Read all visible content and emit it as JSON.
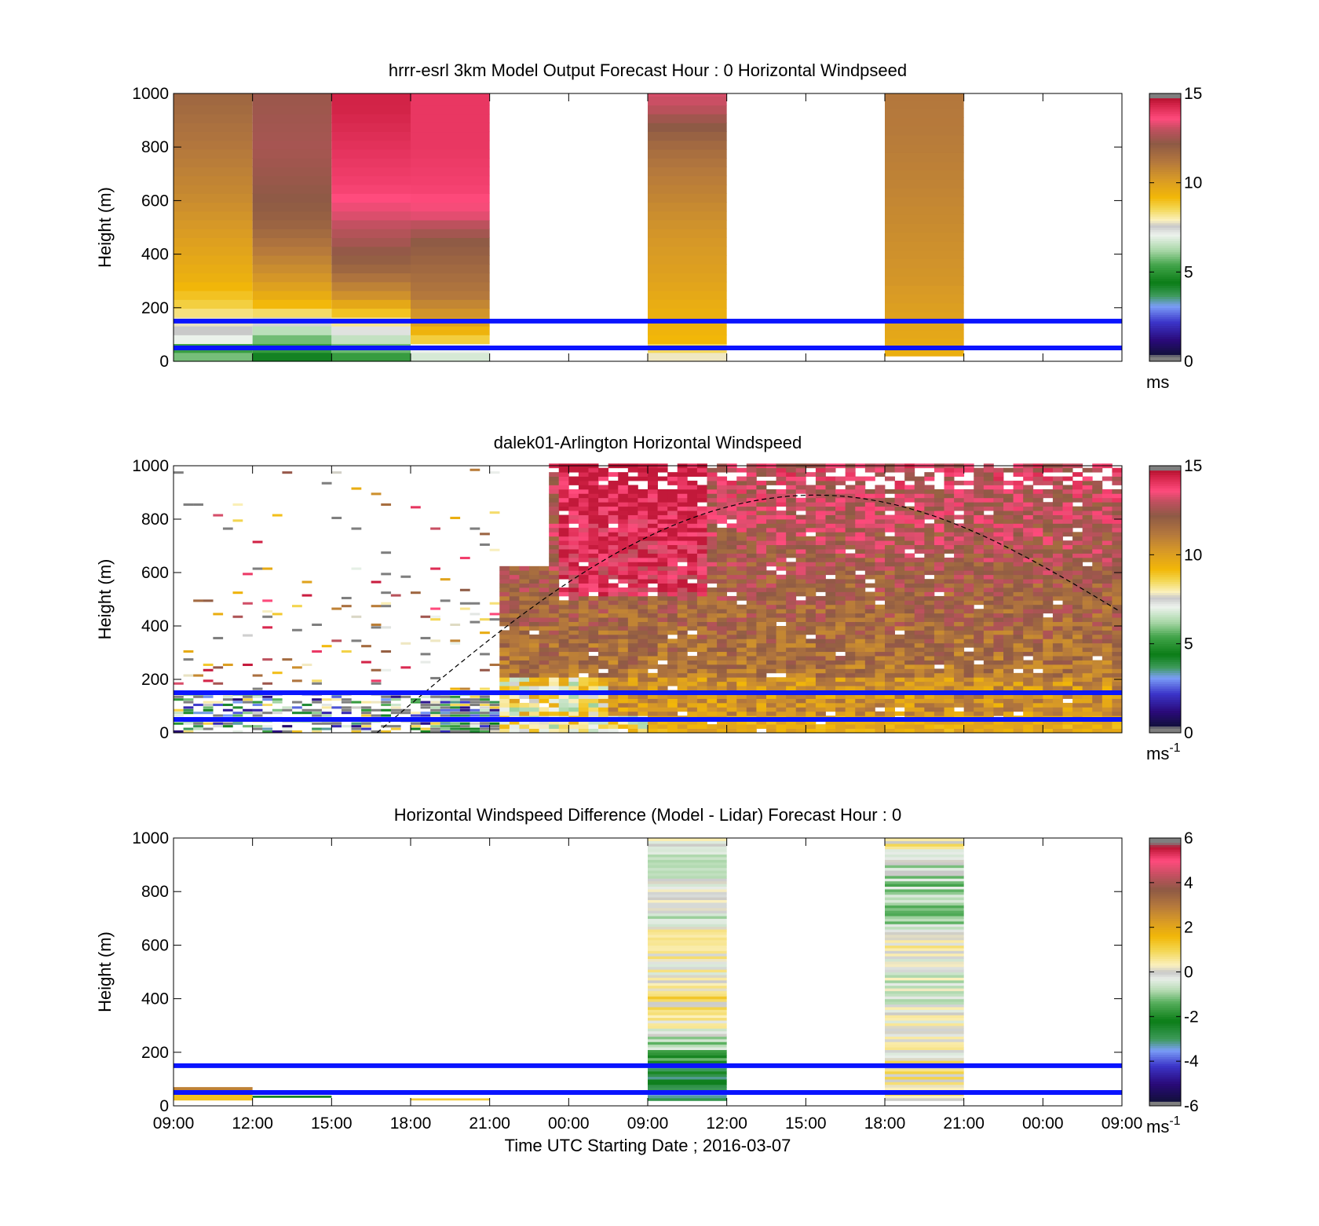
{
  "chart_data": [
    {
      "type": "heatmap",
      "title": "hrrr-esrl 3km Model Output   Forecast Hour : 0 Horizontal Windpseed",
      "ylabel": "Height (m)",
      "xlabel": "",
      "ylim": [
        0,
        1000
      ],
      "yticks": [
        "0",
        "200",
        "400",
        "600",
        "800",
        "1000"
      ],
      "xlim_hours": [
        0,
        48
      ],
      "xticks": [
        "09:00",
        "12:00",
        "15:00",
        "18:00",
        "21:00",
        "00:00",
        "09:00",
        "12:00",
        "15:00",
        "18:00",
        "21:00",
        "00:00",
        "09:00"
      ],
      "show_xtick_labels": false,
      "colorbar": {
        "min": 0,
        "max": 15,
        "ticks": [
          "0",
          "5",
          "10",
          "15"
        ],
        "unit": "ms",
        "unit_sup": "",
        "scheme": "wind"
      },
      "reference_lines_m": [
        50,
        150
      ],
      "reference_line_color": "#0a14ff",
      "columns": [
        {
          "start_hour": 0,
          "end_hour": 4,
          "profile": [
            [
              0,
              2
            ],
            [
              15,
              6
            ],
            [
              35,
              3.5
            ],
            [
              60,
              6.5
            ],
            [
              100,
              7.5
            ],
            [
              150,
              7.8
            ],
            [
              200,
              8.6
            ],
            [
              300,
              9.4
            ],
            [
              400,
              9.8
            ],
            [
              500,
              10.2
            ],
            [
              600,
              10.6
            ],
            [
              700,
              10.9
            ],
            [
              800,
              11.2
            ],
            [
              900,
              11.5
            ],
            [
              1000,
              11.8
            ]
          ]
        },
        {
          "start_hour": 4,
          "end_hour": 8,
          "profile": [
            [
              0,
              4
            ],
            [
              30,
              4.5
            ],
            [
              60,
              5.5
            ],
            [
              100,
              6
            ],
            [
              150,
              7.5
            ],
            [
              200,
              9
            ],
            [
              300,
              10.2
            ],
            [
              400,
              11
            ],
            [
              500,
              11.8
            ],
            [
              600,
              12.2
            ],
            [
              700,
              12.4
            ],
            [
              800,
              12.6
            ],
            [
              900,
              12.5
            ],
            [
              1000,
              12.4
            ]
          ]
        },
        {
          "start_hour": 8,
          "end_hour": 12,
          "profile": [
            [
              0,
              5
            ],
            [
              40,
              5.5
            ],
            [
              80,
              6.5
            ],
            [
              120,
              7.4
            ],
            [
              160,
              8.5
            ],
            [
              250,
              10.5
            ],
            [
              350,
              11.8
            ],
            [
              450,
              12.6
            ],
            [
              550,
              13.3
            ],
            [
              650,
              13.8
            ],
            [
              750,
              14
            ],
            [
              850,
              14.2
            ],
            [
              950,
              14.4
            ],
            [
              1000,
              14.4
            ]
          ]
        },
        {
          "start_hour": 12,
          "end_hour": 16,
          "profile": [
            [
              0,
              7
            ],
            [
              40,
              6.5
            ],
            [
              70,
              8.5
            ],
            [
              150,
              10
            ],
            [
              250,
              11.2
            ],
            [
              350,
              11.7
            ],
            [
              450,
              12.2
            ],
            [
              550,
              13.4
            ],
            [
              650,
              13.8
            ],
            [
              800,
              14
            ],
            [
              900,
              14
            ],
            [
              1000,
              14
            ]
          ]
        },
        {
          "start_hour": 24,
          "end_hour": 28,
          "profile": [
            [
              0,
              7.5
            ],
            [
              40,
              8.3
            ],
            [
              80,
              9.2
            ],
            [
              200,
              9.5
            ],
            [
              300,
              9.9
            ],
            [
              500,
              10.4
            ],
            [
              700,
              11.1
            ],
            [
              800,
              11.6
            ],
            [
              850,
              12
            ],
            [
              900,
              12.4
            ],
            [
              950,
              13
            ],
            [
              1000,
              13.2
            ]
          ]
        },
        {
          "start_hour": 36,
          "end_hour": 40,
          "profile": [
            [
              20,
              9.3
            ],
            [
              50,
              9.6
            ],
            [
              150,
              9.9
            ],
            [
              300,
              10.3
            ],
            [
              500,
              10.6
            ],
            [
              700,
              10.9
            ],
            [
              850,
              11.1
            ],
            [
              1000,
              11.2
            ]
          ]
        }
      ]
    },
    {
      "type": "heatmap",
      "title": "dalek01-Arlington  Horizontal Windspeed",
      "ylabel": "Height (m)",
      "xlabel": "",
      "ylim": [
        0,
        1000
      ],
      "yticks": [
        "0",
        "200",
        "400",
        "600",
        "800",
        "1000"
      ],
      "xlim_hours": [
        0,
        48
      ],
      "xticks": [
        "09:00",
        "12:00",
        "15:00",
        "18:00",
        "21:00",
        "00:00",
        "09:00",
        "12:00",
        "15:00",
        "18:00",
        "21:00",
        "00:00",
        "09:00"
      ],
      "show_xtick_labels": false,
      "colorbar": {
        "min": 0,
        "max": 15,
        "ticks": [
          "0",
          "5",
          "10",
          "15"
        ],
        "unit": "ms",
        "unit_sup": "-1",
        "scheme": "wind"
      },
      "reference_lines_m": [
        50,
        150
      ],
      "reference_line_color": "#0a14ff",
      "boundary_layer_curve": {
        "start_hour": 10.3,
        "peak_hour": 32.5,
        "peak_height_m": 890,
        "end_hour": 48,
        "end_height_m": 450
      },
      "dense_region_start_hour": 16.5
    },
    {
      "type": "heatmap",
      "title": "Horizontal Windspeed Difference (Model - Lidar) Forecast Hour : 0",
      "ylabel": "Height (m)",
      "xlabel": "Time UTC  Starting Date ; 2016-03-07",
      "ylim": [
        0,
        1000
      ],
      "yticks": [
        "0",
        "200",
        "400",
        "600",
        "800",
        "1000"
      ],
      "xlim_hours": [
        0,
        48
      ],
      "xticks": [
        "09:00",
        "12:00",
        "15:00",
        "18:00",
        "21:00",
        "00:00",
        "09:00",
        "12:00",
        "15:00",
        "18:00",
        "21:00",
        "00:00",
        "09:00"
      ],
      "show_xtick_labels": true,
      "colorbar": {
        "min": -6,
        "max": 6,
        "ticks": [
          "-6",
          "-4",
          "-2",
          "0",
          "2",
          "4",
          "6"
        ],
        "unit": "ms",
        "unit_sup": "-1",
        "scheme": "diff"
      },
      "reference_lines_m": [
        50,
        150
      ],
      "reference_line_color": "#0a14ff",
      "columns": [
        {
          "start_hour": 24,
          "end_hour": 28,
          "profile": [
            [
              20,
              -3
            ],
            [
              150,
              -2.5
            ],
            [
              200,
              -1.2
            ],
            [
              300,
              0.2
            ],
            [
              400,
              0.7
            ],
            [
              500,
              0
            ],
            [
              600,
              0.6
            ],
            [
              700,
              -0.5
            ],
            [
              800,
              0.4
            ],
            [
              900,
              -0.6
            ],
            [
              1000,
              0.3
            ]
          ]
        },
        {
          "start_hour": 36,
          "end_hour": 40,
          "profile": [
            [
              20,
              0.4
            ],
            [
              150,
              0.6
            ],
            [
              200,
              0.2
            ],
            [
              300,
              0.1
            ],
            [
              400,
              -0.4
            ],
            [
              500,
              -0.2
            ],
            [
              600,
              0.2
            ],
            [
              700,
              -0.8
            ],
            [
              800,
              -1
            ],
            [
              900,
              -0.5
            ],
            [
              1000,
              0.6
            ]
          ]
        }
      ],
      "small_segments": [
        {
          "start_hour": 0,
          "end_hour": 4,
          "bottom_m": 50,
          "top_m": 70,
          "value": 2.8
        },
        {
          "start_hour": 0,
          "end_hour": 4,
          "bottom_m": 20,
          "top_m": 50,
          "value": 1.4
        },
        {
          "start_hour": 4,
          "end_hour": 8,
          "bottom_m": 30,
          "top_m": 38,
          "value": -2.3
        },
        {
          "start_hour": 12,
          "end_hour": 16,
          "bottom_m": 20,
          "top_m": 28,
          "value": 1.2
        }
      ]
    }
  ]
}
